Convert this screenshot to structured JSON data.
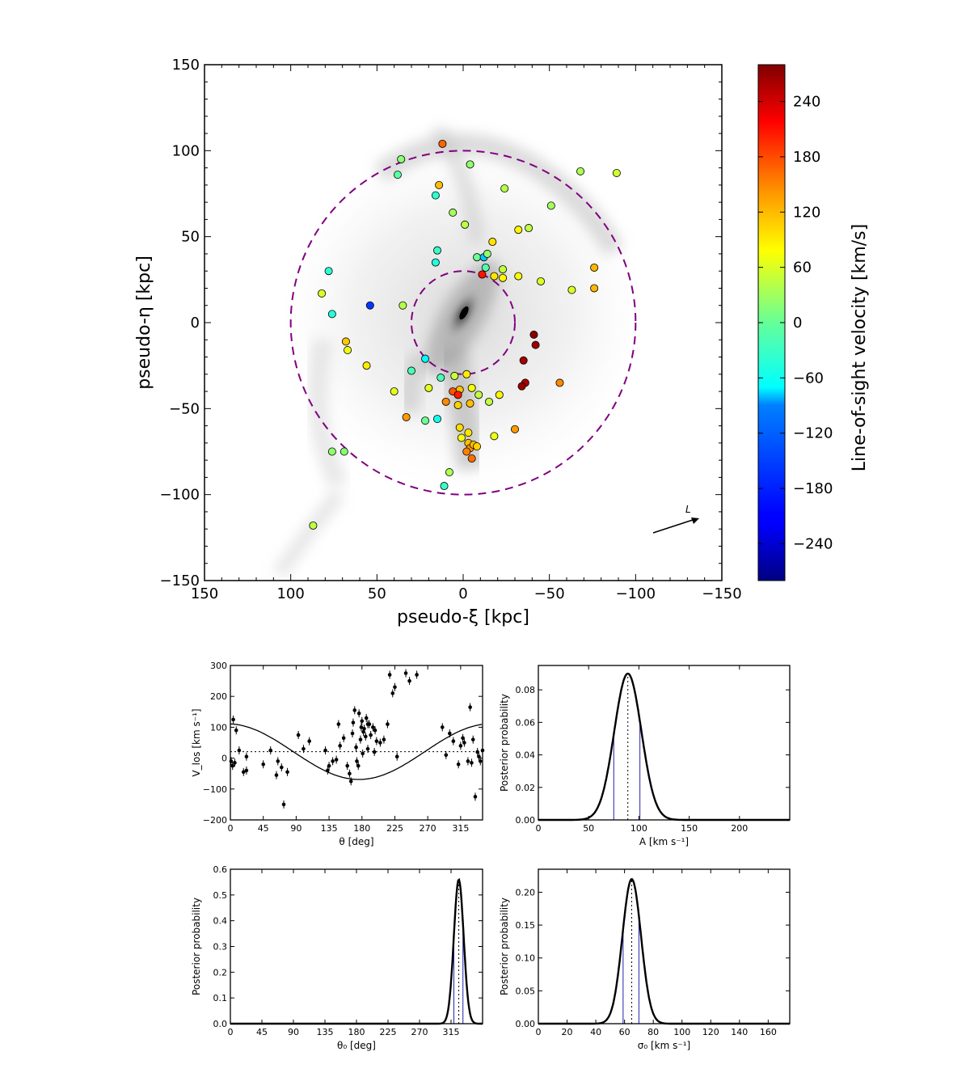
{
  "chart_data": [
    {
      "type": "scatter",
      "panel": "main-map",
      "xlabel": "pseudo-ξ [kpc]",
      "ylabel": "pseudo-η [kpc]",
      "xlim": [
        150,
        -150
      ],
      "ylim": [
        -150,
        150
      ],
      "xticks": [
        150,
        100,
        50,
        0,
        -50,
        -100,
        -150
      ],
      "yticks": [
        150,
        100,
        50,
        0,
        -50,
        -100,
        -150
      ],
      "xtick_labels": [
        "150",
        "100",
        "50",
        "0",
        "−50",
        "−100",
        "−150"
      ],
      "ytick_labels": [
        "150",
        "100",
        "50",
        "0",
        "−50",
        "−100",
        "−150"
      ],
      "colorbar": {
        "label": "Line-of-sight velocity [km/s]",
        "range": [
          -280,
          280
        ],
        "ticks": [
          240,
          180,
          120,
          60,
          0,
          -60,
          -120,
          -180,
          -240
        ],
        "tick_labels": [
          "240",
          "180",
          "120",
          "60",
          "0",
          "−60",
          "−120",
          "−180",
          "−240"
        ]
      },
      "circles_kpc": [
        100,
        30
      ],
      "arrow_label": "L",
      "points": [
        [
          12,
          104,
          155
        ],
        [
          -4,
          92,
          10
        ],
        [
          36,
          95,
          5
        ],
        [
          38,
          86,
          -20
        ],
        [
          14,
          80,
          105
        ],
        [
          16,
          74,
          -45
        ],
        [
          -24,
          78,
          30
        ],
        [
          -51,
          68,
          20
        ],
        [
          -68,
          88,
          25
        ],
        [
          -89,
          87,
          45
        ],
        [
          6,
          64,
          20
        ],
        [
          -1,
          57,
          35
        ],
        [
          -32,
          54,
          75
        ],
        [
          -38,
          55,
          35
        ],
        [
          -17,
          47,
          85
        ],
        [
          15,
          42,
          -40
        ],
        [
          16,
          35,
          -50
        ],
        [
          -8,
          38,
          -10
        ],
        [
          -12,
          38,
          -100
        ],
        [
          -14,
          40,
          10
        ],
        [
          -13,
          32,
          -25
        ],
        [
          -18,
          27,
          85
        ],
        [
          -23,
          26,
          75
        ],
        [
          -23,
          31,
          35
        ],
        [
          -32,
          27,
          65
        ],
        [
          -45,
          24,
          50
        ],
        [
          -11,
          28,
          200
        ],
        [
          -63,
          19,
          50
        ],
        [
          -76,
          32,
          110
        ],
        [
          -76,
          20,
          110
        ],
        [
          78,
          30,
          -45
        ],
        [
          82,
          17,
          50
        ],
        [
          76,
          5,
          -50
        ],
        [
          35,
          10,
          30
        ],
        [
          54,
          10,
          -180
        ],
        [
          68,
          -11,
          100
        ],
        [
          67,
          -16,
          60
        ],
        [
          56,
          -25,
          80
        ],
        [
          40,
          -40,
          55
        ],
        [
          30,
          -28,
          -30
        ],
        [
          22,
          -21,
          -70
        ],
        [
          -41,
          -7,
          275
        ],
        [
          -42,
          -13,
          265
        ],
        [
          -35,
          -22,
          260
        ],
        [
          -36,
          -35,
          255
        ],
        [
          -34,
          -37,
          265
        ],
        [
          -56,
          -35,
          135
        ],
        [
          13,
          -32,
          -30
        ],
        [
          5,
          -31,
          40
        ],
        [
          -2,
          -30,
          80
        ],
        [
          20,
          -38,
          55
        ],
        [
          -5,
          -38,
          65
        ],
        [
          2,
          -39,
          105
        ],
        [
          6,
          -40,
          165
        ],
        [
          3,
          -42,
          195
        ],
        [
          -9,
          -42,
          35
        ],
        [
          -21,
          -42,
          75
        ],
        [
          -15,
          -46,
          35
        ],
        [
          10,
          -46,
          135
        ],
        [
          3,
          -48,
          95
        ],
        [
          -4,
          -47,
          105
        ],
        [
          33,
          -55,
          125
        ],
        [
          22,
          -57,
          -10
        ],
        [
          15,
          -56,
          -60
        ],
        [
          2,
          -61,
          90
        ],
        [
          -3,
          -64,
          85
        ],
        [
          1,
          -67,
          65
        ],
        [
          -3,
          -70,
          105
        ],
        [
          -4,
          -73,
          130
        ],
        [
          -2,
          -75,
          140
        ],
        [
          -6,
          -71,
          110
        ],
        [
          -8,
          -72,
          95
        ],
        [
          -5,
          -79,
          150
        ],
        [
          -30,
          -62,
          125
        ],
        [
          -18,
          -66,
          60
        ],
        [
          8,
          -87,
          25
        ],
        [
          11,
          -95,
          -40
        ],
        [
          76,
          -75,
          10
        ],
        [
          69,
          -75,
          5
        ],
        [
          87,
          -118,
          35
        ]
      ]
    },
    {
      "type": "scatter",
      "panel": "vlos-vs-theta",
      "xlabel": "θ [deg]",
      "ylabel": "V_los [km s⁻¹]",
      "xlim": [
        0,
        345
      ],
      "ylim": [
        -200,
        300
      ],
      "xticks": [
        0,
        45,
        90,
        135,
        180,
        225,
        270,
        315
      ],
      "yticks": [
        -200,
        -100,
        0,
        100,
        200,
        300
      ],
      "ytick_labels": [
        "−200",
        "−100",
        "0",
        "100",
        "200",
        "300"
      ],
      "model": {
        "mean": 21,
        "amplitude": 90,
        "phase_deg": 326
      },
      "points": [
        [
          1,
          -10
        ],
        [
          3,
          -25
        ],
        [
          4,
          125
        ],
        [
          6,
          -15
        ],
        [
          8,
          90
        ],
        [
          12,
          25
        ],
        [
          18,
          -45
        ],
        [
          22,
          -40
        ],
        [
          22,
          5
        ],
        [
          45,
          -20
        ],
        [
          55,
          25
        ],
        [
          63,
          -55
        ],
        [
          65,
          -10
        ],
        [
          70,
          -30
        ],
        [
          73,
          -150
        ],
        [
          78,
          -45
        ],
        [
          93,
          75
        ],
        [
          100,
          30
        ],
        [
          108,
          55
        ],
        [
          130,
          25
        ],
        [
          133,
          -40
        ],
        [
          135,
          -25
        ],
        [
          140,
          -10
        ],
        [
          145,
          -5
        ],
        [
          148,
          110
        ],
        [
          150,
          40
        ],
        [
          155,
          65
        ],
        [
          160,
          -25
        ],
        [
          163,
          -50
        ],
        [
          165,
          -75
        ],
        [
          167,
          80
        ],
        [
          168,
          115
        ],
        [
          170,
          155
        ],
        [
          172,
          35
        ],
        [
          173,
          -10
        ],
        [
          175,
          -25
        ],
        [
          176,
          145
        ],
        [
          178,
          60
        ],
        [
          179,
          100
        ],
        [
          180,
          120
        ],
        [
          181,
          15
        ],
        [
          182,
          85
        ],
        [
          183,
          95
        ],
        [
          185,
          70
        ],
        [
          186,
          130
        ],
        [
          188,
          110
        ],
        [
          188,
          30
        ],
        [
          190,
          110
        ],
        [
          192,
          75
        ],
        [
          195,
          100
        ],
        [
          197,
          20
        ],
        [
          198,
          90
        ],
        [
          200,
          55
        ],
        [
          205,
          50
        ],
        [
          210,
          60
        ],
        [
          215,
          110
        ],
        [
          218,
          270
        ],
        [
          222,
          210
        ],
        [
          225,
          230
        ],
        [
          228,
          5
        ],
        [
          240,
          275
        ],
        [
          245,
          250
        ],
        [
          255,
          270
        ],
        [
          290,
          100
        ],
        [
          295,
          10
        ],
        [
          300,
          80
        ],
        [
          305,
          55
        ],
        [
          312,
          -20
        ],
        [
          315,
          40
        ],
        [
          318,
          65
        ],
        [
          320,
          50
        ],
        [
          325,
          -10
        ],
        [
          328,
          165
        ],
        [
          330,
          -15
        ],
        [
          332,
          60
        ],
        [
          335,
          -125
        ],
        [
          338,
          20
        ],
        [
          340,
          5
        ],
        [
          342,
          -10
        ],
        [
          345,
          25
        ]
      ]
    },
    {
      "type": "line",
      "panel": "posterior-A",
      "xlabel": "A [km s⁻¹]",
      "ylabel": "Posterior probability",
      "xlim": [
        0,
        250
      ],
      "ylim": [
        0,
        0.095
      ],
      "xticks": [
        0,
        50,
        100,
        150,
        200
      ],
      "yticks": [
        0.0,
        0.02,
        0.04,
        0.06,
        0.08
      ],
      "ytick_labels": [
        "0.00",
        "0.02",
        "0.04",
        "0.06",
        "0.08"
      ],
      "peak": 0.09,
      "mean": 89,
      "sigma": 13.5,
      "dotted_line": 89,
      "interval_lines": [
        75,
        101
      ]
    },
    {
      "type": "line",
      "panel": "posterior-theta0",
      "xlabel": "θ₀ [deg]",
      "ylabel": "Posterior probability",
      "xlim": [
        0,
        360
      ],
      "ylim": [
        0,
        0.6
      ],
      "xticks": [
        0,
        45,
        90,
        135,
        180,
        225,
        270,
        315
      ],
      "yticks": [
        0.0,
        0.1,
        0.2,
        0.3,
        0.4,
        0.5,
        0.6
      ],
      "ytick_labels": [
        "0.0",
        "0.1",
        "0.2",
        "0.3",
        "0.4",
        "0.5",
        "0.6"
      ],
      "peak": 0.56,
      "mean": 326,
      "sigma": 7,
      "dotted_line": 326,
      "interval_lines": [
        319,
        332
      ]
    },
    {
      "type": "line",
      "panel": "posterior-sigma0",
      "xlabel": "σ₀ [km s⁻¹]",
      "ylabel": "Posterior probability",
      "xlim": [
        0,
        175
      ],
      "ylim": [
        0,
        0.235
      ],
      "xticks": [
        0,
        20,
        40,
        60,
        80,
        100,
        120,
        140,
        160
      ],
      "yticks": [
        0.0,
        0.05,
        0.1,
        0.15,
        0.2
      ],
      "ytick_labels": [
        "0.00",
        "0.05",
        "0.10",
        "0.15",
        "0.20"
      ],
      "peak": 0.22,
      "mean": 65,
      "sigma": 6.5,
      "dotted_line": 65,
      "interval_lines": [
        59,
        70
      ]
    }
  ]
}
